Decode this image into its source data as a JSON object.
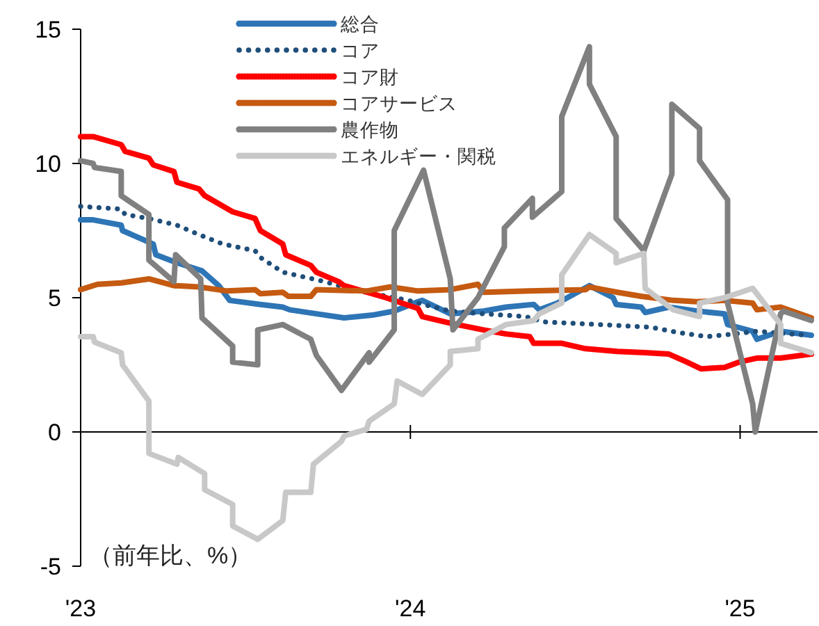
{
  "chart_data": {
    "type": "line",
    "legend": "top",
    "xlim": [
      2023,
      2025.235
    ],
    "ylim": [
      -5,
      15
    ],
    "xticks": [
      {
        "value": 2023,
        "label": "'23"
      },
      {
        "value": 2024,
        "label": "'24"
      },
      {
        "value": 2025,
        "label": "'25"
      }
    ],
    "yticks": [
      -5,
      0,
      5,
      10,
      15
    ],
    "annotations": [
      "（前年比、%）"
    ],
    "series": [
      {
        "name": "総合",
        "color": "#2e75b6",
        "line_style": "solid",
        "x": [
          2023.0,
          2023.038,
          2023.123,
          2023.127,
          2023.22,
          2023.228,
          2023.292,
          2023.368,
          2023.419,
          2023.452,
          2023.545,
          2023.613,
          2023.634,
          2023.715,
          2023.799,
          2023.884,
          2023.951,
          2024.023,
          2024.036,
          2024.121,
          2024.222,
          2024.29,
          2024.374,
          2024.391,
          2024.446,
          2024.543,
          2024.615,
          2024.624,
          2024.7,
          2024.712,
          2024.784,
          2024.869,
          2024.953,
          2024.962,
          2025.038,
          2025.051,
          2025.123,
          2025.216
        ],
        "values": [
          7.9,
          7.9,
          7.7,
          7.5,
          7.0,
          6.6,
          6.3,
          6.0,
          5.45,
          4.9,
          4.75,
          4.65,
          4.55,
          4.4,
          4.25,
          4.35,
          4.5,
          4.85,
          4.9,
          4.4,
          4.5,
          4.65,
          4.75,
          4.55,
          4.8,
          5.45,
          5.0,
          4.75,
          4.65,
          4.45,
          4.65,
          4.5,
          4.4,
          4.0,
          3.75,
          3.45,
          3.75,
          3.6
        ]
      },
      {
        "name": "コア",
        "color": "#1f4e79",
        "line_style": "dotted",
        "x": [
          2023.0,
          2023.123,
          2023.135,
          2023.207,
          2023.292,
          2023.359,
          2023.431,
          2023.529,
          2023.545,
          2023.613,
          2023.74,
          2023.825,
          2023.994,
          2024.023,
          2024.121,
          2024.222,
          2024.349,
          2024.404,
          2024.573,
          2024.729,
          2024.814,
          2024.899,
          2024.983,
          2025.051,
          2025.207
        ],
        "values": [
          8.4,
          8.3,
          8.1,
          7.95,
          7.7,
          7.35,
          7.0,
          6.75,
          6.5,
          5.95,
          5.6,
          5.3,
          4.9,
          4.8,
          4.5,
          4.4,
          4.3,
          4.1,
          4.0,
          3.9,
          3.7,
          3.55,
          3.65,
          3.75,
          3.6
        ]
      },
      {
        "name": "コア財",
        "color": "#ff0000",
        "line_style": "solid",
        "x": [
          2023.0,
          2023.038,
          2023.123,
          2023.135,
          2023.207,
          2023.22,
          2023.283,
          2023.292,
          2023.359,
          2023.376,
          2023.461,
          2023.529,
          2023.545,
          2023.613,
          2023.622,
          2023.698,
          2023.715,
          2023.782,
          2023.799,
          2023.926,
          2024.023,
          2024.036,
          2024.121,
          2024.222,
          2024.29,
          2024.362,
          2024.374,
          2024.459,
          2024.531,
          2024.628,
          2024.712,
          2024.784,
          2024.839,
          2024.882,
          2024.953,
          2024.996,
          2025.051,
          2025.123,
          2025.216
        ],
        "values": [
          11.0,
          11.0,
          10.7,
          10.45,
          10.2,
          9.95,
          9.7,
          9.3,
          9.05,
          8.8,
          8.2,
          7.95,
          7.5,
          7.0,
          6.6,
          6.2,
          5.95,
          5.6,
          5.45,
          5.0,
          4.6,
          4.3,
          4.05,
          3.8,
          3.65,
          3.55,
          3.3,
          3.3,
          3.1,
          3.0,
          2.95,
          2.9,
          2.6,
          2.35,
          2.4,
          2.6,
          2.75,
          2.75,
          2.9
        ]
      },
      {
        "name": "コアサービス",
        "color": "#c55a11",
        "line_style": "solid",
        "x": [
          2023.0,
          2023.051,
          2023.123,
          2023.207,
          2023.283,
          2023.359,
          2023.444,
          2023.529,
          2023.545,
          2023.613,
          2023.63,
          2023.698,
          2023.715,
          2023.867,
          2023.939,
          2024.023,
          2024.121,
          2024.205,
          2024.222,
          2024.362,
          2024.531,
          2024.543,
          2024.628,
          2024.7,
          2024.797,
          2024.869,
          2024.953,
          2025.038,
          2025.051,
          2025.123,
          2025.216
        ],
        "values": [
          5.3,
          5.5,
          5.55,
          5.7,
          5.45,
          5.4,
          5.25,
          5.3,
          5.15,
          5.2,
          5.05,
          5.05,
          5.3,
          5.25,
          5.4,
          5.25,
          5.3,
          5.5,
          5.2,
          5.25,
          5.3,
          5.4,
          5.2,
          5.05,
          4.9,
          4.85,
          4.9,
          4.8,
          4.55,
          4.65,
          4.25
        ]
      },
      {
        "name": "農作物",
        "color": "#808080",
        "line_style": "solid",
        "x": [
          2023.0,
          2023.038,
          2023.042,
          2023.123,
          2023.123,
          2023.207,
          2023.207,
          2023.283,
          2023.288,
          2023.364,
          2023.368,
          2023.461,
          2023.461,
          2023.537,
          2023.537,
          2023.613,
          2023.698,
          2023.715,
          2023.791,
          2023.875,
          2023.875,
          2023.951,
          2023.951,
          2024.04,
          2024.121,
          2024.129,
          2024.205,
          2024.285,
          2024.285,
          2024.37,
          2024.37,
          2024.459,
          2024.459,
          2024.543,
          2024.543,
          2024.624,
          2024.624,
          2024.708,
          2024.793,
          2024.793,
          2024.877,
          2024.877,
          2024.962,
          2024.962,
          2025.038,
          2025.046,
          2025.123,
          2025.131,
          2025.216
        ],
        "values": [
          10.1,
          10.0,
          9.85,
          9.7,
          8.8,
          8.1,
          6.4,
          5.6,
          6.6,
          5.7,
          4.25,
          3.2,
          2.6,
          2.5,
          3.8,
          4.0,
          3.45,
          2.85,
          1.55,
          2.95,
          2.6,
          3.8,
          7.5,
          9.75,
          5.7,
          3.8,
          5.0,
          6.9,
          7.6,
          8.7,
          8.0,
          8.95,
          11.75,
          14.35,
          12.95,
          11.0,
          7.95,
          6.75,
          9.6,
          12.2,
          11.3,
          10.1,
          8.65,
          4.8,
          1.05,
          0.0,
          4.4,
          4.5,
          4.15
        ]
      },
      {
        "name": "エネルギー・関税",
        "color": "#c8c8c8",
        "line_style": "solid",
        "x": [
          2023.0,
          2023.038,
          2023.042,
          2023.123,
          2023.127,
          2023.207,
          2023.207,
          2023.292,
          2023.296,
          2023.376,
          2023.376,
          2023.461,
          2023.461,
          2023.537,
          2023.613,
          2023.622,
          2023.698,
          2023.706,
          2023.791,
          2023.799,
          2023.867,
          2023.875,
          2023.951,
          2023.96,
          2024.036,
          2024.121,
          2024.121,
          2024.205,
          2024.205,
          2024.29,
          2024.374,
          2024.391,
          2024.459,
          2024.459,
          2024.543,
          2024.624,
          2024.624,
          2024.708,
          2024.712,
          2024.797,
          2024.877,
          2024.877,
          2024.953,
          2025.038,
          2025.123,
          2025.123,
          2025.216
        ],
        "values": [
          3.55,
          3.55,
          3.35,
          2.95,
          2.5,
          1.15,
          -0.8,
          -1.2,
          -0.95,
          -1.55,
          -2.15,
          -2.7,
          -3.5,
          -4.0,
          -3.3,
          -2.25,
          -2.25,
          -1.2,
          -0.35,
          -0.15,
          0.1,
          0.4,
          1.05,
          1.9,
          1.4,
          2.5,
          3.0,
          3.1,
          3.45,
          4.0,
          4.15,
          4.4,
          4.8,
          5.85,
          7.35,
          6.65,
          6.3,
          6.65,
          5.35,
          4.55,
          4.3,
          4.8,
          5.0,
          5.35,
          4.0,
          3.3,
          2.95
        ]
      }
    ]
  }
}
